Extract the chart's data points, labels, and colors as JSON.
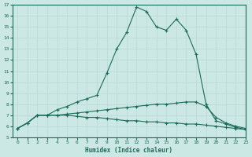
{
  "xlabel": "Humidex (Indice chaleur)",
  "xlim": [
    -0.5,
    23
  ],
  "ylim": [
    5,
    17
  ],
  "yticks": [
    5,
    6,
    7,
    8,
    9,
    10,
    11,
    12,
    13,
    14,
    15,
    16,
    17
  ],
  "xticks": [
    0,
    1,
    2,
    3,
    4,
    5,
    6,
    7,
    8,
    9,
    10,
    11,
    12,
    13,
    14,
    15,
    16,
    17,
    18,
    19,
    20,
    21,
    22,
    23
  ],
  "bg_color": "#cce8e4",
  "line_color": "#1a6b5a",
  "grid_color": "#b8d8d4",
  "line1_x": [
    0,
    1,
    2,
    3,
    4,
    5,
    6,
    7,
    8,
    9,
    10,
    11,
    12,
    13,
    14,
    15,
    16,
    17,
    18,
    19,
    20,
    21,
    22,
    23
  ],
  "line1_y": [
    5.8,
    6.3,
    7.0,
    7.0,
    7.5,
    7.8,
    8.2,
    8.5,
    8.8,
    10.8,
    13.0,
    14.5,
    16.8,
    16.4,
    15.0,
    14.7,
    15.7,
    14.7,
    12.5,
    8.0,
    6.5,
    6.2,
    5.9,
    5.7
  ],
  "line2_x": [
    0,
    1,
    2,
    3,
    4,
    5,
    6,
    7,
    8,
    9,
    10,
    11,
    12,
    13,
    14,
    15,
    16,
    17,
    18,
    19,
    20,
    21,
    22,
    23
  ],
  "line2_y": [
    5.8,
    6.3,
    7.0,
    7.0,
    7.0,
    7.1,
    7.2,
    7.3,
    7.4,
    7.5,
    7.6,
    7.7,
    7.8,
    7.9,
    8.0,
    8.0,
    8.1,
    8.2,
    8.2,
    7.8,
    6.8,
    6.3,
    6.0,
    5.8
  ],
  "line3_x": [
    0,
    1,
    2,
    3,
    4,
    5,
    6,
    7,
    8,
    9,
    10,
    11,
    12,
    13,
    14,
    15,
    16,
    17,
    18,
    19,
    20,
    21,
    22,
    23
  ],
  "line3_y": [
    5.8,
    6.3,
    7.0,
    7.0,
    7.0,
    7.0,
    6.9,
    6.8,
    6.8,
    6.7,
    6.6,
    6.5,
    6.5,
    6.4,
    6.4,
    6.3,
    6.3,
    6.2,
    6.2,
    6.1,
    6.0,
    5.9,
    5.8,
    5.7
  ]
}
